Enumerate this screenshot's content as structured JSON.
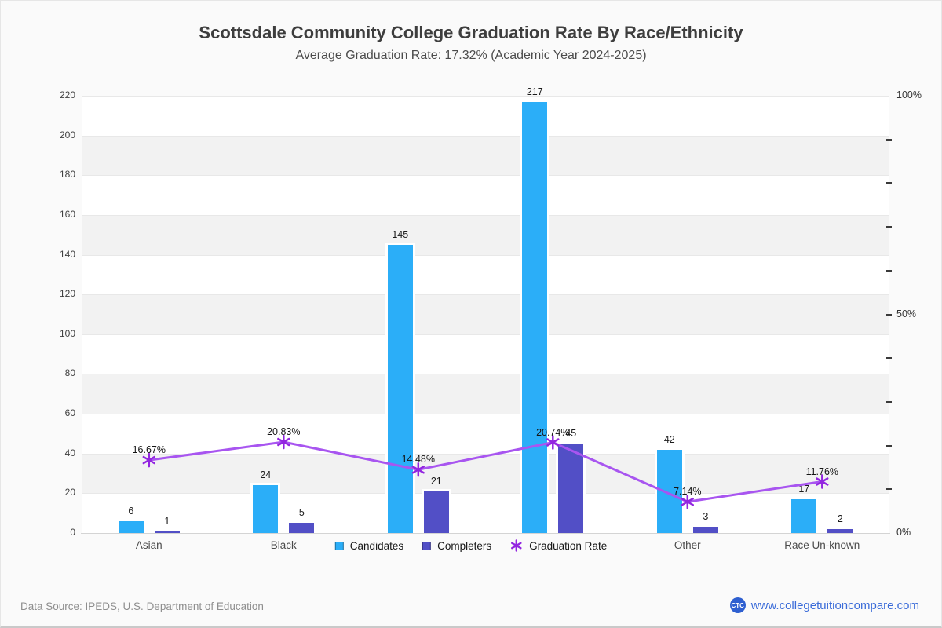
{
  "footer": {
    "source": "Data Source: IPEDS, U.S. Department of Education",
    "logo_text": "CTC",
    "logo_color": "#2E5FD0",
    "website": "www.collegetuitioncompare.com",
    "link_color": "#3B6CD9"
  },
  "chart_data": {
    "type": "combo-bar-line",
    "title": "Scottsdale Community College Graduation Rate By Race/Ethnicity",
    "subtitle": "Average Graduation Rate: 17.32% (Academic Year 2024-2025)",
    "categories": [
      "Asian",
      "Black",
      "",
      "",
      "Other",
      "Race Un-known"
    ],
    "series": [
      {
        "name": "Candidates",
        "type": "bar",
        "color": "#2BAEF8",
        "values": [
          6,
          24,
          145,
          217,
          42,
          17
        ]
      },
      {
        "name": "Completers",
        "type": "bar",
        "color": "#524FC6",
        "values": [
          1,
          5,
          21,
          45,
          3,
          2
        ]
      },
      {
        "name": "Graduation Rate",
        "type": "line",
        "axis": "right",
        "color": "#A855F0",
        "marker_color": "#9326E0",
        "values": [
          16.67,
          20.83,
          14.48,
          20.74,
          7.14,
          11.76
        ],
        "labels": [
          "16.67%",
          "20.83%",
          "14.48%",
          "20.74%",
          "7.14%",
          "11.76%"
        ]
      }
    ],
    "left_axis": {
      "min": 0,
      "max": 220,
      "step": 20,
      "ticks": [
        0,
        20,
        40,
        60,
        80,
        100,
        120,
        140,
        160,
        180,
        200,
        220
      ]
    },
    "right_axis": {
      "min": 0,
      "max": 100,
      "minor_tick_step": 10,
      "labels": [
        {
          "pct": 100,
          "text": "100%"
        },
        {
          "pct": 50,
          "text": "50%"
        },
        {
          "pct": 0,
          "text": "0%"
        }
      ]
    },
    "grid": {
      "band_colors": [
        "#FFFFFF",
        "#F2F2F2"
      ],
      "grid_line": "#E8E8E8",
      "axis_line": "#D4D4D4"
    },
    "legend_position": "bottom-center"
  }
}
